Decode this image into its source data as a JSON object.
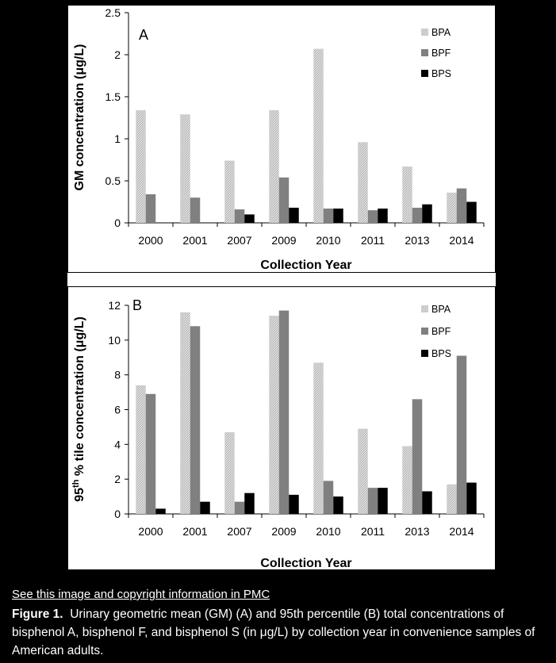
{
  "caption": {
    "link_text": "See this image and copyright information in PMC",
    "figure_label": "Figure 1.",
    "text": "Urinary geometric mean (GM) (A) and 95th percentile (B) total concentrations of bisphenol A, bisphenol F, and bisphenol S (in μg/L) by collection year in convenience samples of American adults."
  },
  "colors": {
    "BPA": "#cfcfcf",
    "BPF": "#808080",
    "BPS": "#000000"
  },
  "chart_data": [
    {
      "type": "bar",
      "panel_label": "A",
      "categories": [
        "2000",
        "2001",
        "2007",
        "2009",
        "2010",
        "2011",
        "2013",
        "2014"
      ],
      "series": [
        {
          "name": "BPA",
          "values": [
            1.34,
            1.29,
            0.74,
            1.34,
            2.07,
            0.96,
            0.67,
            0.36
          ]
        },
        {
          "name": "BPF",
          "values": [
            0.34,
            0.3,
            0.16,
            0.54,
            0.17,
            0.15,
            0.18,
            0.41
          ]
        },
        {
          "name": "BPS",
          "values": [
            0,
            0,
            0.1,
            0.18,
            0.17,
            0.17,
            0.22,
            0.25
          ]
        }
      ],
      "xlabel": "Collection Year",
      "ylabel": "GM concentration (μg/L)",
      "ylim": [
        0,
        2.5
      ],
      "yticks": [
        "0",
        "0.5",
        "1",
        "1.5",
        "2",
        "2.5"
      ],
      "grid": false,
      "legend": "top-right"
    },
    {
      "type": "bar",
      "panel_label": "B",
      "categories": [
        "2000",
        "2001",
        "2007",
        "2009",
        "2010",
        "2011",
        "2013",
        "2014"
      ],
      "series": [
        {
          "name": "BPA",
          "values": [
            7.4,
            11.6,
            4.7,
            11.4,
            8.7,
            4.9,
            3.9,
            1.7
          ]
        },
        {
          "name": "BPF",
          "values": [
            6.9,
            10.8,
            0.7,
            11.7,
            1.9,
            1.5,
            6.6,
            9.1
          ]
        },
        {
          "name": "BPS",
          "values": [
            0.3,
            0.7,
            1.2,
            1.1,
            1.0,
            1.5,
            1.3,
            1.8
          ]
        }
      ],
      "xlabel": "Collection Year",
      "ylabel_main": "95",
      "ylabel_sup": "th",
      "ylabel_rest": " % tile concentration (μg/L)",
      "ylim": [
        0,
        12
      ],
      "yticks": [
        "0",
        "2",
        "4",
        "6",
        "8",
        "10",
        "12"
      ],
      "grid": false,
      "legend": "top-right"
    }
  ]
}
